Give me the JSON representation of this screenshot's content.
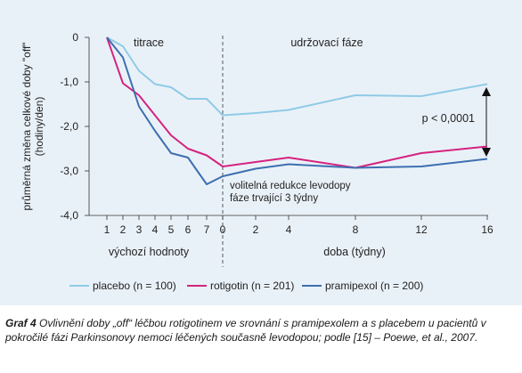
{
  "chart_data": {
    "type": "line",
    "ylabel": "průměrná změna celkové doby \"off\" (hodiny/den)",
    "ylim": [
      -4,
      0
    ],
    "yticks": [
      "0",
      "-1,0",
      "-2,0",
      "-3,0",
      "-4,0"
    ],
    "x_positions": [
      "1",
      "2",
      "3",
      "4",
      "5",
      "6",
      "7",
      "0",
      "2",
      "4",
      "8",
      "12",
      "16"
    ],
    "x_group_labels": [
      "výchozí hodnoty",
      "doba (týdny)"
    ],
    "section_labels": [
      "titrace",
      "udržovací fáze"
    ],
    "annotations": {
      "p_value": "p < 0,0001",
      "note_line1": "volitelná redukce levodopy",
      "note_line2": "fáze trvající 3 týdny"
    },
    "series": [
      {
        "name": "placebo (n = 100)",
        "color": "#8fcbe6",
        "values": [
          0,
          -0.2,
          -0.75,
          -1.05,
          -1.12,
          -1.38,
          -1.38,
          -1.75,
          -1.7,
          -1.63,
          -1.3,
          -1.32,
          -1.05
        ]
      },
      {
        "name": "rotigotin (n = 201)",
        "color": "#d4237f",
        "values": [
          0,
          -1.03,
          -1.3,
          -1.75,
          -2.2,
          -2.5,
          -2.65,
          -2.9,
          -2.8,
          -2.7,
          -2.93,
          -2.6,
          -2.45
        ]
      },
      {
        "name": "pramipexol (n = 200)",
        "color": "#3d6fb0",
        "values": [
          0,
          -0.45,
          -1.55,
          -2.1,
          -2.6,
          -2.7,
          -3.3,
          -3.12,
          -2.95,
          -2.85,
          -2.93,
          -2.9,
          -2.73
        ]
      }
    ]
  },
  "caption": {
    "label": "Graf 4",
    "text": "Ovlivnění doby „off“ léčbou rotigotinem ve srovnání s pramipexolem a s placebem u pacientů v pokročilé fázi Parkinsonovy nemoci léčených současně levodopou; podle [15] – Poewe, et al., 2007."
  }
}
